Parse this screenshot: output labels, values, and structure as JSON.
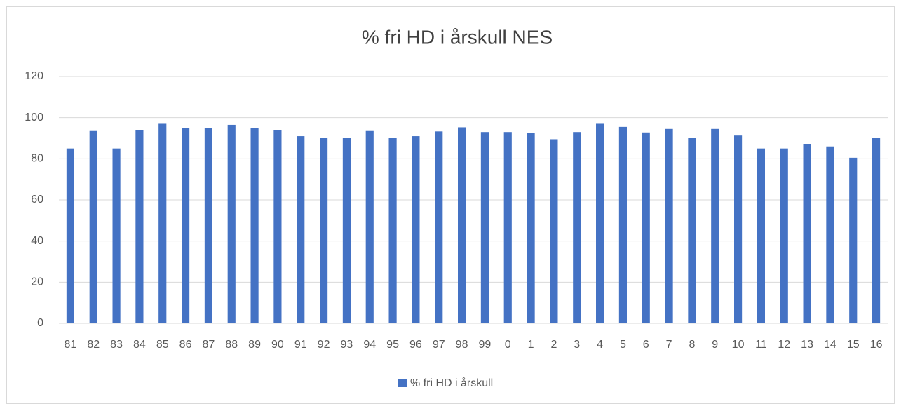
{
  "chart_data": {
    "type": "bar",
    "title": "% fri HD i årskull NES",
    "categories": [
      "81",
      "82",
      "83",
      "84",
      "85",
      "86",
      "87",
      "88",
      "89",
      "90",
      "91",
      "92",
      "93",
      "94",
      "95",
      "96",
      "97",
      "98",
      "99",
      "0",
      "1",
      "2",
      "3",
      "4",
      "5",
      "6",
      "7",
      "8",
      "9",
      "10",
      "11",
      "12",
      "13",
      "14",
      "15",
      "16"
    ],
    "series": [
      {
        "name": "% fri HD i årskull",
        "color": "#4472c4",
        "values": [
          85,
          93.5,
          85,
          94,
          97,
          95,
          95,
          96.5,
          95,
          94,
          91,
          90,
          90,
          93.5,
          90,
          91,
          93.3,
          95.3,
          93,
          93,
          92.5,
          89.5,
          93,
          97,
          95.5,
          92.8,
          94.5,
          90,
          94.5,
          91.3,
          85,
          85,
          87,
          86,
          80.5,
          90
        ]
      }
    ],
    "ylim": [
      0,
      120
    ],
    "yticks": [
      0,
      20,
      40,
      60,
      80,
      100,
      120
    ],
    "grid": true,
    "legend": "bottom"
  }
}
